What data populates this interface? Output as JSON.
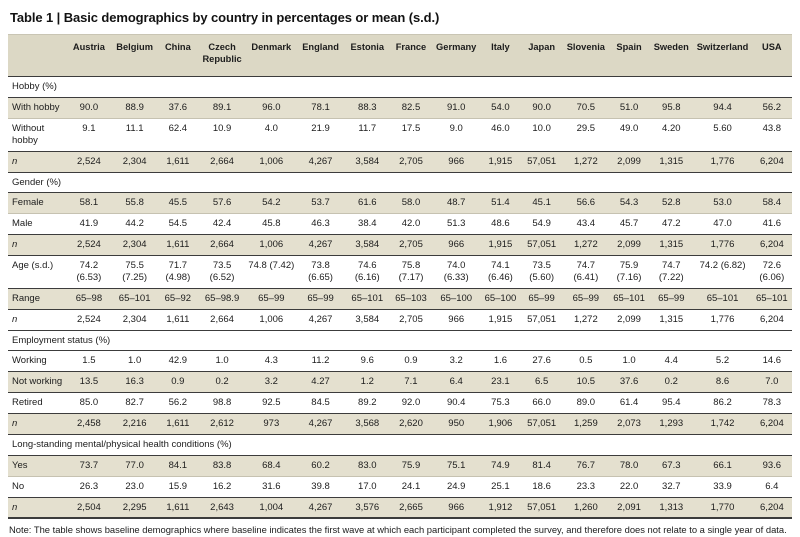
{
  "title": "Table 1 | Basic demographics by country in percentages or mean (s.d.)",
  "note": "Note: The table shows baseline demographics where baseline indicates the first wave at which each participant completed the survey, and therefore does not relate to a single year of data.",
  "colors": {
    "shade_beige": "#e4e0cf",
    "header_beige": "#dcd8c5",
    "rule_dark": "#3c3c3c",
    "rule_light": "#c6c2b1"
  },
  "table": {
    "columns": [
      "Austria",
      "Belgium",
      "China",
      "Czech Republic",
      "Denmark",
      "England",
      "Estonia",
      "France",
      "Germany",
      "Italy",
      "Japan",
      "Slovenia",
      "Spain",
      "Sweden",
      "Switzerland",
      "USA"
    ],
    "sections": [
      {
        "label": "Hobby (%)",
        "rows": [
          {
            "label": "With hobby",
            "shaded": true,
            "rule": "dark",
            "values": [
              "90.0",
              "88.9",
              "37.6",
              "89.1",
              "96.0",
              "78.1",
              "88.3",
              "82.5",
              "91.0",
              "54.0",
              "90.0",
              "70.5",
              "51.0",
              "95.8",
              "94.4",
              "56.2"
            ]
          },
          {
            "label": "Without hobby",
            "shaded": false,
            "rule": "light",
            "values": [
              "9.1",
              "11.1",
              "62.4",
              "10.9",
              "4.0",
              "21.9",
              "11.7",
              "17.5",
              "9.0",
              "46.0",
              "10.0",
              "29.5",
              "49.0",
              "4.20",
              "5.60",
              "43.8"
            ]
          },
          {
            "label": "n",
            "shaded": true,
            "rule": "dark",
            "values": [
              "2,524",
              "2,304",
              "1,611",
              "2,664",
              "1,006",
              "4,267",
              "3,584",
              "2,705",
              "966",
              "1,915",
              "57,051",
              "1,272",
              "2,099",
              "1,315",
              "1,776",
              "6,204"
            ]
          }
        ]
      },
      {
        "label": "Gender (%)",
        "rows": [
          {
            "label": "Female",
            "shaded": true,
            "rule": "dark",
            "values": [
              "58.1",
              "55.8",
              "45.5",
              "57.6",
              "54.2",
              "53.7",
              "61.6",
              "58.0",
              "48.7",
              "51.4",
              "45.1",
              "56.6",
              "54.3",
              "52.8",
              "53.0",
              "58.4"
            ]
          },
          {
            "label": "Male",
            "shaded": false,
            "rule": "light",
            "values": [
              "41.9",
              "44.2",
              "54.5",
              "42.4",
              "45.8",
              "46.3",
              "38.4",
              "42.0",
              "51.3",
              "48.6",
              "54.9",
              "43.4",
              "45.7",
              "47.2",
              "47.0",
              "41.6"
            ]
          },
          {
            "label": "n",
            "shaded": true,
            "rule": "dark",
            "values": [
              "2,524",
              "2,304",
              "1,611",
              "2,664",
              "1,006",
              "4,267",
              "3,584",
              "2,705",
              "966",
              "1,915",
              "57,051",
              "1,272",
              "2,099",
              "1,315",
              "1,776",
              "6,204"
            ]
          }
        ]
      },
      {
        "label": null,
        "rows": [
          {
            "label": "Age (s.d.)",
            "shaded": false,
            "rule": "dark",
            "values": [
              "74.2 (6.53)",
              "75.5 (7.25)",
              "71.7 (4.98)",
              "73.5 (6.52)",
              "74.8 (7.42)",
              "73.8 (6.65)",
              "74.6 (6.16)",
              "75.8 (7.17)",
              "74.0 (6.33)",
              "74.1 (6.46)",
              "73.5 (5.60)",
              "74.7 (6.41)",
              "75.9 (7.16)",
              "74.7 (7.22)",
              "74.2 (6.82)",
              "72.6 (6.06)"
            ]
          },
          {
            "label": "Range",
            "shaded": true,
            "rule": "dark",
            "values": [
              "65–98",
              "65–101",
              "65–92",
              "65–98.9",
              "65–99",
              "65–99",
              "65–101",
              "65–103",
              "65–100",
              "65–100",
              "65–99",
              "65–99",
              "65–101",
              "65–99",
              "65–101",
              "65–101"
            ]
          },
          {
            "label": "n",
            "shaded": false,
            "rule": "dark",
            "values": [
              "2,524",
              "2,304",
              "1,611",
              "2,664",
              "1,006",
              "4,267",
              "3,584",
              "2,705",
              "966",
              "1,915",
              "57,051",
              "1,272",
              "2,099",
              "1,315",
              "1,776",
              "6,204"
            ]
          }
        ]
      },
      {
        "label": "Employment status (%)",
        "rows": [
          {
            "label": "Working",
            "shaded": false,
            "rule": "dark",
            "values": [
              "1.5",
              "1.0",
              "42.9",
              "1.0",
              "4.3",
              "11.2",
              "9.6",
              "0.9",
              "3.2",
              "1.6",
              "27.6",
              "0.5",
              "1.0",
              "4.4",
              "5.2",
              "14.6"
            ]
          },
          {
            "label": "Not working",
            "shaded": true,
            "rule": "dark",
            "values": [
              "13.5",
              "16.3",
              "0.9",
              "0.2",
              "3.2",
              "4.27",
              "1.2",
              "7.1",
              "6.4",
              "23.1",
              "6.5",
              "10.5",
              "37.6",
              "0.2",
              "8.6",
              "7.0"
            ]
          },
          {
            "label": "Retired",
            "shaded": false,
            "rule": "dark",
            "values": [
              "85.0",
              "82.7",
              "56.2",
              "98.8",
              "92.5",
              "84.5",
              "89.2",
              "92.0",
              "90.4",
              "75.3",
              "66.0",
              "89.0",
              "61.4",
              "95.4",
              "86.2",
              "78.3"
            ]
          },
          {
            "label": "n",
            "shaded": true,
            "rule": "dark",
            "values": [
              "2,458",
              "2,216",
              "1,611",
              "2,612",
              "973",
              "4,267",
              "3,568",
              "2,620",
              "950",
              "1,906",
              "57,051",
              "1,259",
              "2,073",
              "1,293",
              "1,742",
              "6,204"
            ]
          }
        ]
      },
      {
        "label": "Long-standing mental/physical health conditions (%)",
        "rows": [
          {
            "label": "Yes",
            "shaded": true,
            "rule": "dark",
            "values": [
              "73.7",
              "77.0",
              "84.1",
              "83.8",
              "68.4",
              "60.2",
              "83.0",
              "75.9",
              "75.1",
              "74.9",
              "81.4",
              "76.7",
              "78.0",
              "67.3",
              "66.1",
              "93.6"
            ]
          },
          {
            "label": "No",
            "shaded": false,
            "rule": "light",
            "values": [
              "26.3",
              "23.0",
              "15.9",
              "16.2",
              "31.6",
              "39.8",
              "17.0",
              "24.1",
              "24.9",
              "25.1",
              "18.6",
              "23.3",
              "22.0",
              "32.7",
              "33.9",
              "6.4"
            ]
          },
          {
            "label": "n",
            "shaded": true,
            "rule": "dark",
            "values": [
              "2,504",
              "2,295",
              "1,611",
              "2,643",
              "1,004",
              "4,267",
              "3,576",
              "2,665",
              "966",
              "1,912",
              "57,051",
              "1,260",
              "2,091",
              "1,313",
              "1,770",
              "6,204"
            ]
          }
        ]
      }
    ]
  }
}
